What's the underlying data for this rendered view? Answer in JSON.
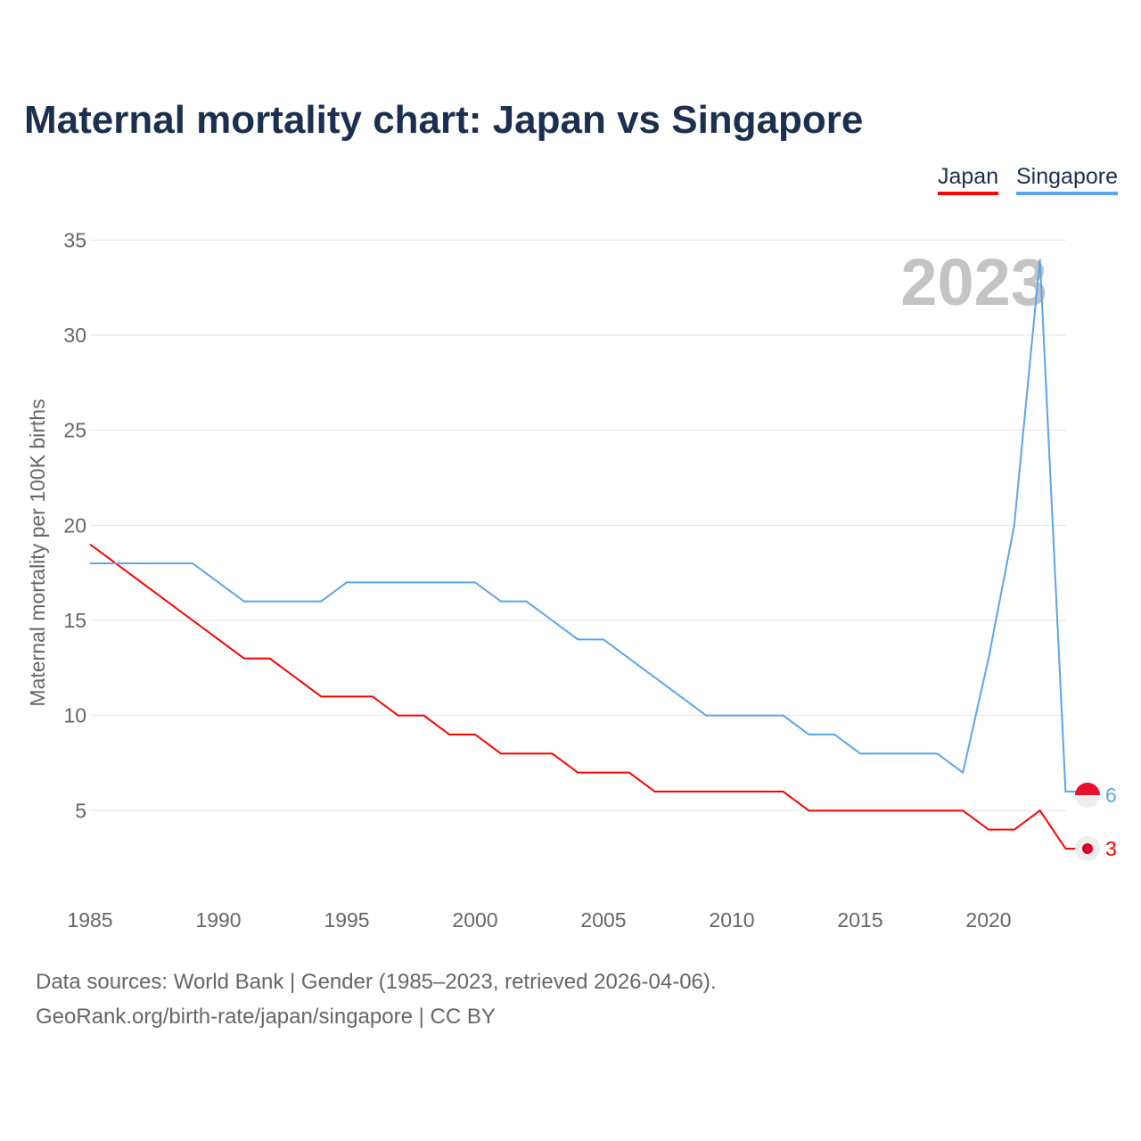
{
  "chart_data": {
    "type": "line",
    "title": "Maternal mortality chart: Japan vs Singapore",
    "ylabel": "Maternal mortality per 100K births",
    "xlabel": "",
    "ylim": [
      0,
      35
    ],
    "xlim": [
      1985,
      2023
    ],
    "yticks": [
      5,
      10,
      15,
      20,
      25,
      30,
      35
    ],
    "xticks": [
      1985,
      1990,
      1995,
      2000,
      2005,
      2010,
      2015,
      2020
    ],
    "year_label": "2023",
    "x": [
      1985,
      1986,
      1987,
      1988,
      1989,
      1990,
      1991,
      1992,
      1993,
      1994,
      1995,
      1996,
      1997,
      1998,
      1999,
      2000,
      2001,
      2002,
      2003,
      2004,
      2005,
      2006,
      2007,
      2008,
      2009,
      2010,
      2011,
      2012,
      2013,
      2014,
      2015,
      2016,
      2017,
      2018,
      2019,
      2020,
      2021,
      2022,
      2023
    ],
    "series": [
      {
        "name": "Japan",
        "color": "#ff0000",
        "end_label": "3",
        "values": [
          19,
          18,
          17,
          16,
          15,
          14,
          13,
          13,
          12,
          11,
          11,
          11,
          10,
          10,
          9,
          9,
          8,
          8,
          8,
          7,
          7,
          7,
          6,
          6,
          6,
          6,
          6,
          6,
          5,
          5,
          5,
          5,
          5,
          5,
          5,
          4,
          4,
          5,
          3
        ]
      },
      {
        "name": "Singapore",
        "color": "#5aa5ec",
        "end_label": "6",
        "values": [
          18,
          18,
          18,
          18,
          18,
          17,
          16,
          16,
          16,
          16,
          17,
          17,
          17,
          17,
          17,
          17,
          16,
          16,
          15,
          14,
          14,
          13,
          12,
          11,
          10,
          10,
          10,
          10,
          9,
          9,
          8,
          8,
          8,
          8,
          7,
          13,
          20,
          34,
          6
        ]
      }
    ],
    "legend": "top-right"
  },
  "source_line1": "Data sources: World Bank | Gender (1985–2023, retrieved 2026-04-06).",
  "source_line2": "GeoRank.org/birth-rate/japan/singapore | CC BY"
}
